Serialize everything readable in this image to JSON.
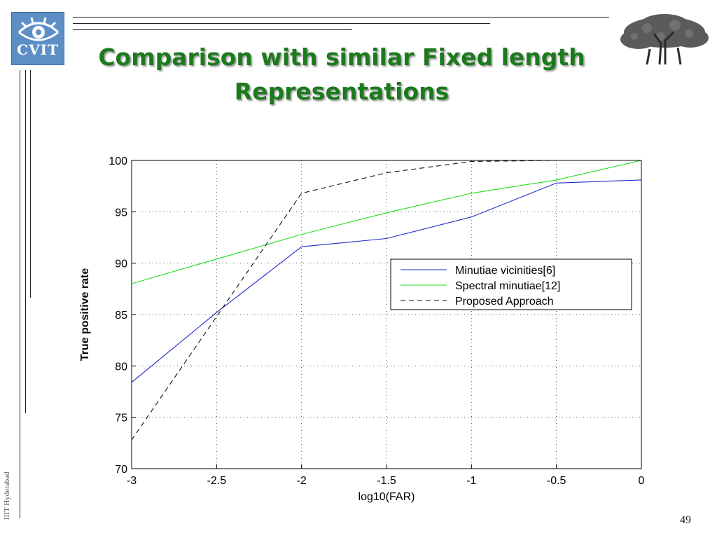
{
  "slide": {
    "title_line1": "Comparison with similar Fixed length",
    "title_line2": "Representations",
    "logo_text": "CVIT",
    "side_text": "IIIT Hyderabad",
    "page_number": "49",
    "colors": {
      "title": "#1c7a1c",
      "logo_bg": "#5d8fc6"
    }
  },
  "chart_data": {
    "type": "line",
    "title": "",
    "xlabel": "log10(FAR)",
    "ylabel": "True positive rate",
    "xlim": [
      -3,
      0
    ],
    "ylim": [
      70,
      100
    ],
    "x_ticks": [
      -3,
      -2.5,
      -2,
      -1.5,
      -1,
      -0.5,
      0
    ],
    "x_tick_labels": [
      "-3",
      "-2.5",
      "-2",
      "-1.5",
      "-1",
      "-0.5",
      "0"
    ],
    "y_ticks": [
      70,
      75,
      80,
      85,
      90,
      95,
      100
    ],
    "y_tick_labels": [
      "70",
      "75",
      "80",
      "85",
      "90",
      "95",
      "100"
    ],
    "grid": true,
    "legend_position": "right",
    "x": [
      -3,
      -2.5,
      -2,
      -1.5,
      -1,
      -0.5,
      0
    ],
    "series": [
      {
        "name": "Minutiae vicinities[6]",
        "color": "#1f2bc8",
        "dash": "solid",
        "values": [
          78.4,
          85.2,
          91.6,
          92.4,
          94.5,
          97.8,
          98.1
        ]
      },
      {
        "name": "Spectral minutiae[12]",
        "color": "#1ee01e",
        "dash": "solid",
        "values": [
          88.0,
          90.4,
          92.8,
          94.9,
          96.8,
          98.1,
          100.0
        ]
      },
      {
        "name": "Proposed Approach",
        "color": "#111111",
        "dash": "dashed",
        "values": [
          72.8,
          84.8,
          96.8,
          98.8,
          99.9,
          100.0,
          100.0
        ]
      }
    ]
  }
}
